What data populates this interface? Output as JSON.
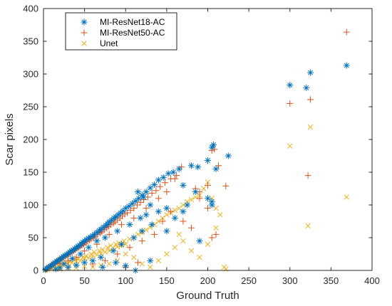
{
  "chart_data": {
    "type": "scatter",
    "xlabel": "Ground Truth",
    "ylabel": "Scar pixels",
    "xlim": [
      0,
      400
    ],
    "ylim": [
      0,
      400
    ],
    "xticks": [
      0,
      50,
      100,
      150,
      200,
      250,
      300,
      350,
      400
    ],
    "yticks": [
      0,
      50,
      100,
      150,
      200,
      250,
      300,
      350,
      400
    ],
    "grid": false,
    "legend_position": "top-left",
    "series": [
      {
        "name": "MI-ResNet18-AC",
        "marker": "asterisk",
        "color": "#0072BD",
        "points": [
          [
            2,
            1
          ],
          [
            4,
            3
          ],
          [
            6,
            5
          ],
          [
            8,
            6
          ],
          [
            10,
            8
          ],
          [
            12,
            10
          ],
          [
            14,
            12
          ],
          [
            16,
            14
          ],
          [
            18,
            15
          ],
          [
            20,
            17
          ],
          [
            22,
            19
          ],
          [
            24,
            21
          ],
          [
            26,
            23
          ],
          [
            28,
            24
          ],
          [
            30,
            26
          ],
          [
            32,
            28
          ],
          [
            34,
            30
          ],
          [
            36,
            31
          ],
          [
            38,
            33
          ],
          [
            40,
            35
          ],
          [
            42,
            37
          ],
          [
            44,
            38
          ],
          [
            46,
            41
          ],
          [
            48,
            43
          ],
          [
            50,
            45
          ],
          [
            52,
            47
          ],
          [
            55,
            49
          ],
          [
            57,
            51
          ],
          [
            60,
            53
          ],
          [
            62,
            55
          ],
          [
            65,
            58
          ],
          [
            68,
            61
          ],
          [
            70,
            63
          ],
          [
            73,
            66
          ],
          [
            76,
            69
          ],
          [
            78,
            71
          ],
          [
            80,
            74
          ],
          [
            83,
            77
          ],
          [
            86,
            80
          ],
          [
            88,
            82
          ],
          [
            91,
            85
          ],
          [
            94,
            88
          ],
          [
            97,
            91
          ],
          [
            100,
            95
          ],
          [
            104,
            98
          ],
          [
            108,
            102
          ],
          [
            112,
            106
          ],
          [
            116,
            110
          ],
          [
            120,
            115
          ],
          [
            125,
            120
          ],
          [
            130,
            126
          ],
          [
            135,
            131
          ],
          [
            140,
            138
          ],
          [
            146,
            142
          ],
          [
            152,
            148
          ],
          [
            158,
            150
          ],
          [
            165,
            155
          ],
          [
            180,
            160
          ],
          [
            188,
            158
          ],
          [
            200,
            168
          ],
          [
            205,
            188
          ],
          [
            207,
            192
          ],
          [
            210,
            155
          ],
          [
            225,
            175
          ],
          [
            115,
            120
          ],
          [
            122,
            112
          ],
          [
            130,
            100
          ],
          [
            140,
            90
          ],
          [
            125,
            85
          ],
          [
            132,
            70
          ],
          [
            120,
            60
          ],
          [
            110,
            50
          ],
          [
            95,
            40
          ],
          [
            85,
            30
          ],
          [
            70,
            20
          ],
          [
            60,
            15
          ],
          [
            50,
            12
          ],
          [
            40,
            8
          ],
          [
            30,
            5
          ],
          [
            20,
            4
          ],
          [
            15,
            2
          ],
          [
            25,
            10
          ],
          [
            35,
            18
          ],
          [
            45,
            25
          ],
          [
            55,
            35
          ],
          [
            65,
            45
          ],
          [
            75,
            50
          ],
          [
            90,
            60
          ],
          [
            105,
            70
          ],
          [
            118,
            80
          ],
          [
            150,
            95
          ],
          [
            160,
            80
          ],
          [
            170,
            130
          ],
          [
            175,
            100
          ],
          [
            185,
            120
          ],
          [
            200,
            110
          ],
          [
            205,
            100
          ],
          [
            150,
            60
          ],
          [
            170,
            90
          ],
          [
            190,
            45
          ],
          [
            205,
            105
          ],
          [
            130,
            15
          ],
          [
            112,
            0
          ],
          [
            100,
            7
          ],
          [
            88,
            12
          ],
          [
            72,
            5
          ],
          [
            300,
            283
          ],
          [
            320,
            279
          ],
          [
            325,
            302
          ],
          [
            369,
            313
          ]
        ]
      },
      {
        "name": "MI-ResNet50-AC",
        "marker": "plus",
        "color": "#D95319",
        "points": [
          [
            3,
            2
          ],
          [
            5,
            3
          ],
          [
            7,
            5
          ],
          [
            9,
            7
          ],
          [
            11,
            9
          ],
          [
            13,
            10
          ],
          [
            15,
            12
          ],
          [
            17,
            14
          ],
          [
            19,
            16
          ],
          [
            21,
            17
          ],
          [
            23,
            19
          ],
          [
            25,
            20
          ],
          [
            27,
            22
          ],
          [
            29,
            24
          ],
          [
            31,
            25
          ],
          [
            33,
            27
          ],
          [
            35,
            28
          ],
          [
            37,
            30
          ],
          [
            39,
            32
          ],
          [
            41,
            34
          ],
          [
            43,
            35
          ],
          [
            45,
            37
          ],
          [
            47,
            39
          ],
          [
            49,
            40
          ],
          [
            51,
            42
          ],
          [
            53,
            44
          ],
          [
            56,
            46
          ],
          [
            58,
            48
          ],
          [
            61,
            50
          ],
          [
            63,
            52
          ],
          [
            66,
            55
          ],
          [
            69,
            57
          ],
          [
            71,
            59
          ],
          [
            74,
            62
          ],
          [
            77,
            65
          ],
          [
            79,
            67
          ],
          [
            82,
            70
          ],
          [
            85,
            72
          ],
          [
            87,
            74
          ],
          [
            90,
            77
          ],
          [
            93,
            80
          ],
          [
            96,
            83
          ],
          [
            99,
            86
          ],
          [
            102,
            88
          ],
          [
            106,
            92
          ],
          [
            110,
            95
          ],
          [
            114,
            100
          ],
          [
            118,
            104
          ],
          [
            122,
            108
          ],
          [
            127,
            112
          ],
          [
            132,
            118
          ],
          [
            137,
            122
          ],
          [
            142,
            128
          ],
          [
            148,
            134
          ],
          [
            155,
            140
          ],
          [
            162,
            145
          ],
          [
            168,
            158
          ],
          [
            185,
            125
          ],
          [
            190,
            120
          ],
          [
            200,
            130
          ],
          [
            205,
            183
          ],
          [
            208,
            185
          ],
          [
            213,
            160
          ],
          [
            222,
            129
          ],
          [
            210,
            55
          ],
          [
            205,
            50
          ],
          [
            160,
            140
          ],
          [
            150,
            120
          ],
          [
            140,
            110
          ],
          [
            125,
            95
          ],
          [
            110,
            80
          ],
          [
            95,
            70
          ],
          [
            80,
            55
          ],
          [
            65,
            40
          ],
          [
            50,
            30
          ],
          [
            40,
            20
          ],
          [
            30,
            15
          ],
          [
            20,
            10
          ],
          [
            60,
            10
          ],
          [
            75,
            15
          ],
          [
            90,
            25
          ],
          [
            105,
            35
          ],
          [
            120,
            45
          ],
          [
            135,
            55
          ],
          [
            145,
            75
          ],
          [
            155,
            90
          ],
          [
            170,
            75
          ],
          [
            180,
            65
          ],
          [
            200,
            95
          ],
          [
            190,
            110
          ],
          [
            100,
            5
          ],
          [
            115,
            12
          ],
          [
            300,
            255
          ],
          [
            322,
            145
          ],
          [
            325,
            261
          ],
          [
            369,
            364
          ]
        ]
      },
      {
        "name": "Unet",
        "marker": "x",
        "color": "#EDB120",
        "points": [
          [
            2,
            0
          ],
          [
            5,
            1
          ],
          [
            8,
            3
          ],
          [
            10,
            2
          ],
          [
            12,
            5
          ],
          [
            15,
            4
          ],
          [
            18,
            8
          ],
          [
            20,
            6
          ],
          [
            22,
            10
          ],
          [
            25,
            9
          ],
          [
            28,
            12
          ],
          [
            30,
            10
          ],
          [
            32,
            14
          ],
          [
            35,
            12
          ],
          [
            38,
            16
          ],
          [
            40,
            14
          ],
          [
            42,
            18
          ],
          [
            45,
            15
          ],
          [
            48,
            20
          ],
          [
            50,
            18
          ],
          [
            52,
            22
          ],
          [
            55,
            19
          ],
          [
            58,
            25
          ],
          [
            60,
            22
          ],
          [
            62,
            28
          ],
          [
            65,
            24
          ],
          [
            68,
            30
          ],
          [
            70,
            26
          ],
          [
            72,
            32
          ],
          [
            75,
            28
          ],
          [
            78,
            35
          ],
          [
            80,
            30
          ],
          [
            82,
            38
          ],
          [
            85,
            34
          ],
          [
            88,
            40
          ],
          [
            90,
            36
          ],
          [
            92,
            42
          ],
          [
            95,
            38
          ],
          [
            98,
            45
          ],
          [
            100,
            40
          ],
          [
            105,
            48
          ],
          [
            110,
            50
          ],
          [
            115,
            55
          ],
          [
            120,
            58
          ],
          [
            125,
            62
          ],
          [
            130,
            66
          ],
          [
            135,
            70
          ],
          [
            140,
            75
          ],
          [
            145,
            80
          ],
          [
            150,
            85
          ],
          [
            155,
            88
          ],
          [
            160,
            92
          ],
          [
            165,
            95
          ],
          [
            170,
            100
          ],
          [
            175,
            105
          ],
          [
            180,
            108
          ],
          [
            185,
            112
          ],
          [
            190,
            115
          ],
          [
            195,
            125
          ],
          [
            200,
            135
          ],
          [
            205,
            110
          ],
          [
            210,
            95
          ],
          [
            215,
            85
          ],
          [
            120,
            10
          ],
          [
            130,
            5
          ],
          [
            140,
            15
          ],
          [
            150,
            25
          ],
          [
            160,
            35
          ],
          [
            165,
            55
          ],
          [
            170,
            45
          ],
          [
            180,
            30
          ],
          [
            190,
            20
          ],
          [
            200,
            40
          ],
          [
            210,
            65
          ],
          [
            220,
            5
          ],
          [
            222,
            2
          ],
          [
            110,
            20
          ],
          [
            100,
            25
          ],
          [
            90,
            15
          ],
          [
            80,
            10
          ],
          [
            70,
            8
          ],
          [
            60,
            5
          ],
          [
            50,
            6
          ],
          [
            40,
            4
          ],
          [
            30,
            3
          ],
          [
            20,
            2
          ],
          [
            300,
            190
          ],
          [
            322,
            68
          ],
          [
            325,
            219
          ],
          [
            369,
            112
          ]
        ]
      }
    ]
  }
}
